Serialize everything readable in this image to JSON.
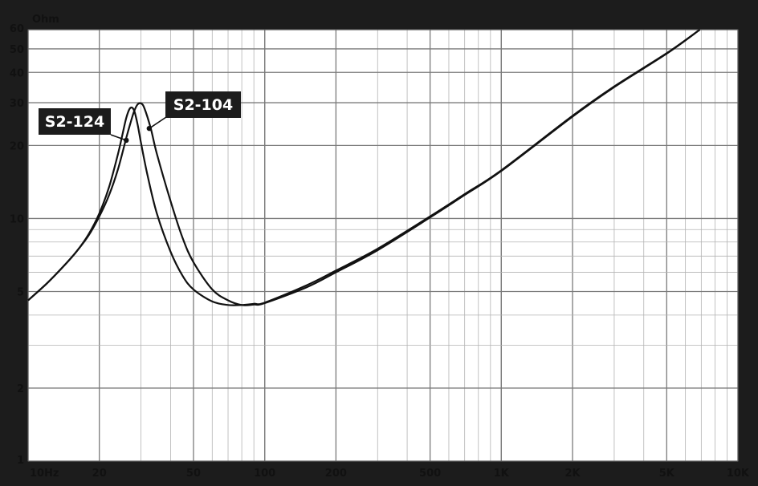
{
  "chart_data": {
    "type": "line",
    "title": "",
    "y_unit_label": "Ohm",
    "x_unit_label": "Hz",
    "x_scale": "log",
    "y_scale": "log",
    "xlim": [
      10,
      10000
    ],
    "ylim": [
      1,
      60
    ],
    "grid": true,
    "legend": "none",
    "x_ticks": [
      {
        "value": 10,
        "label": "10"
      },
      {
        "value": 20,
        "label": "20"
      },
      {
        "value": 50,
        "label": "50"
      },
      {
        "value": 100,
        "label": "100"
      },
      {
        "value": 200,
        "label": "200"
      },
      {
        "value": 500,
        "label": "500"
      },
      {
        "value": 1000,
        "label": "1K"
      },
      {
        "value": 2000,
        "label": "2K"
      },
      {
        "value": 5000,
        "label": "5K"
      },
      {
        "value": 10000,
        "label": "10K"
      }
    ],
    "y_ticks": [
      {
        "value": 1,
        "label": "1"
      },
      {
        "value": 2,
        "label": "2"
      },
      {
        "value": 5,
        "label": "5"
      },
      {
        "value": 10,
        "label": "10"
      },
      {
        "value": 20,
        "label": "20"
      },
      {
        "value": 30,
        "label": "30"
      },
      {
        "value": 40,
        "label": "40"
      },
      {
        "value": 50,
        "label": "50"
      },
      {
        "value": 60,
        "label": "60"
      }
    ],
    "series": [
      {
        "name": "S2-124",
        "x": [
          10,
          12,
          14,
          16,
          18,
          20,
          22,
          24,
          25,
          26,
          27,
          28,
          29,
          30,
          32,
          35,
          40,
          45,
          50,
          60,
          70,
          80,
          90,
          100,
          150,
          200,
          300,
          500,
          700,
          1000,
          2000,
          3000,
          5000,
          6900
        ],
        "y": [
          4.6,
          5.4,
          6.3,
          7.3,
          8.6,
          10.5,
          13.5,
          18.5,
          22,
          26,
          28.5,
          28,
          24.5,
          20.5,
          15,
          10.5,
          7.3,
          5.8,
          5.1,
          4.55,
          4.4,
          4.4,
          4.45,
          4.5,
          5.3,
          6.1,
          7.5,
          10.2,
          12.6,
          15.8,
          26.5,
          35,
          48,
          60
        ]
      },
      {
        "name": "S2-104",
        "x": [
          10,
          12,
          14,
          16,
          18,
          20,
          22,
          24,
          26,
          27,
          28,
          29,
          30,
          31,
          33,
          35,
          40,
          45,
          50,
          60,
          70,
          80,
          90,
          100,
          150,
          200,
          300,
          500,
          700,
          1000,
          2000,
          3000,
          5000,
          6900
        ],
        "y": [
          4.6,
          5.4,
          6.3,
          7.3,
          8.5,
          10.2,
          12.5,
          16,
          21.5,
          24.5,
          27.5,
          29.5,
          29.8,
          28.5,
          23.5,
          18.5,
          11.8,
          8.3,
          6.6,
          5.1,
          4.6,
          4.4,
          4.42,
          4.48,
          5.2,
          6.0,
          7.4,
          10.1,
          12.5,
          15.7,
          26.3,
          34.8,
          47.8,
          60
        ]
      }
    ],
    "annotations": [
      {
        "text": "S2-124",
        "points_to": {
          "x": 26,
          "y": 21
        }
      },
      {
        "text": "S2-104",
        "points_to": {
          "x": 32.5,
          "y": 23.5
        }
      }
    ]
  }
}
